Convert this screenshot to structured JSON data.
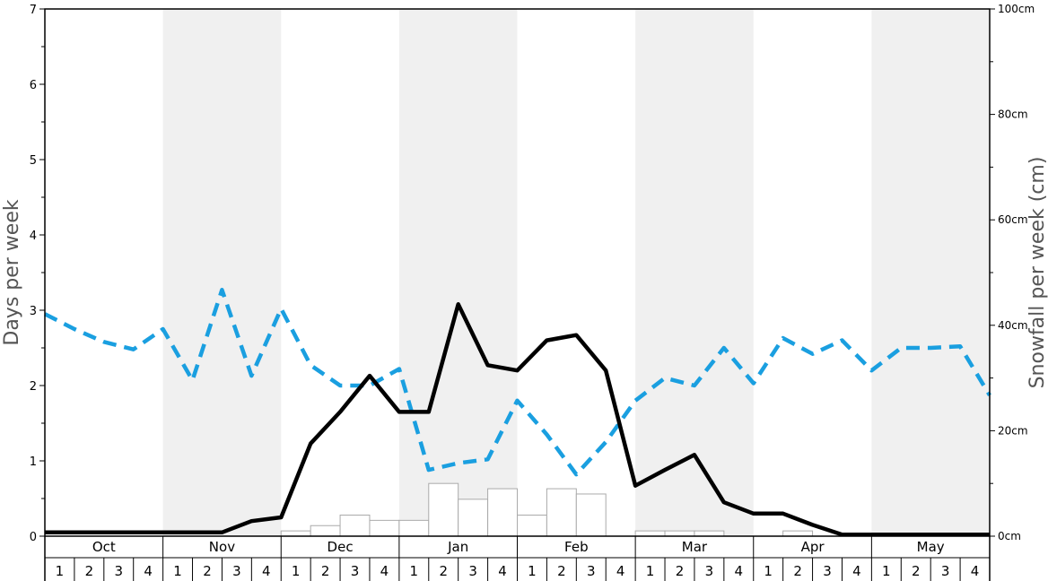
{
  "chart_data": {
    "type": "bar+line",
    "left_axis": {
      "label": "Days per week",
      "range": [
        0,
        7
      ],
      "ticks": [
        "0",
        "1",
        "2",
        "3",
        "4",
        "5",
        "6",
        "7"
      ]
    },
    "right_axis": {
      "label": "Snowfall per week (cm)",
      "range": [
        0,
        100
      ],
      "ticks": [
        "0cm",
        "20cm",
        "40cm",
        "60cm",
        "80cm",
        "100cm"
      ]
    },
    "months": [
      "Oct",
      "Nov",
      "Dec",
      "Jan",
      "Feb",
      "Mar",
      "Apr",
      "May"
    ],
    "weeks": [
      "1",
      "2",
      "3",
      "4"
    ],
    "shaded_months": [
      "Nov",
      "Jan",
      "Mar",
      "May"
    ],
    "colors": {
      "shade": "#f0f0f0",
      "black_line": "#000000",
      "blue_line": "#1a9fe0",
      "bar_fill": "#ffffff",
      "bar_stroke": "#aaaaaa"
    },
    "series": [
      {
        "kind": "bars",
        "axis": "right",
        "values": [
          0,
          0,
          0,
          0,
          0,
          0,
          0,
          0,
          1,
          2,
          4,
          3,
          3,
          10,
          7,
          9,
          4,
          9,
          8,
          0,
          1,
          1,
          1,
          0,
          0,
          1,
          0,
          0,
          0,
          0,
          0,
          0
        ]
      },
      {
        "kind": "solid-line",
        "axis": "left",
        "values": [
          0.05,
          0.05,
          0.05,
          0.05,
          0.05,
          0.05,
          0.05,
          0.2,
          0.25,
          1.23,
          1.65,
          2.13,
          1.65,
          1.65,
          3.08,
          2.27,
          2.2,
          2.6,
          2.67,
          2.2,
          0.67,
          0.88,
          1.08,
          0.45,
          0.3,
          0.3,
          0.15,
          0.02,
          0.02,
          0.02,
          0.02,
          0.02,
          0.02
        ]
      },
      {
        "kind": "dashed-line",
        "axis": "left",
        "values": [
          2.95,
          2.75,
          2.58,
          2.48,
          2.75,
          2.07,
          3.27,
          2.13,
          3.02,
          2.27,
          2.0,
          2.0,
          2.22,
          0.88,
          0.97,
          1.02,
          1.8,
          1.35,
          0.82,
          1.25,
          1.8,
          2.1,
          2.0,
          2.5,
          2.03,
          2.63,
          2.42,
          2.6,
          2.2,
          2.5,
          2.5,
          2.52,
          1.87
        ]
      }
    ]
  }
}
